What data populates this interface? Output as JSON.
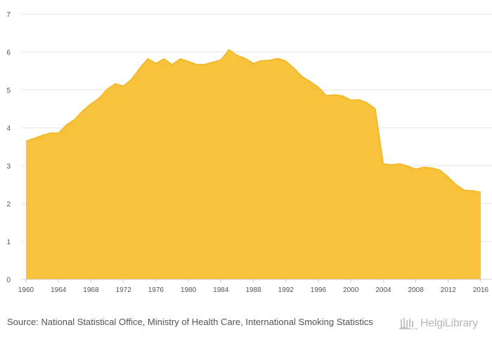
{
  "chart_data": {
    "type": "area",
    "title": "",
    "xlabel": "",
    "ylabel": "",
    "ylim": [
      0,
      7
    ],
    "xlim": [
      1960,
      2016
    ],
    "grid": true,
    "color": "#F8C23C",
    "yticks": [
      0,
      1,
      2,
      3,
      4,
      5,
      6,
      7
    ],
    "xticks": [
      1960,
      1964,
      1968,
      1972,
      1976,
      1980,
      1984,
      1988,
      1992,
      1996,
      2000,
      2004,
      2008,
      2012,
      2016
    ],
    "x": [
      1960,
      1961,
      1962,
      1963,
      1964,
      1965,
      1966,
      1967,
      1968,
      1969,
      1970,
      1971,
      1972,
      1973,
      1974,
      1975,
      1976,
      1977,
      1978,
      1979,
      1980,
      1981,
      1982,
      1983,
      1984,
      1985,
      1986,
      1987,
      1988,
      1989,
      1990,
      1991,
      1992,
      1993,
      1994,
      1995,
      1996,
      1997,
      1998,
      1999,
      2000,
      2001,
      2002,
      2003,
      2004,
      2005,
      2006,
      2007,
      2008,
      2009,
      2010,
      2011,
      2012,
      2013,
      2014,
      2015,
      2016
    ],
    "values": [
      3.65,
      3.72,
      3.8,
      3.86,
      3.86,
      4.08,
      4.22,
      4.45,
      4.63,
      4.78,
      5.02,
      5.16,
      5.1,
      5.28,
      5.57,
      5.82,
      5.7,
      5.82,
      5.67,
      5.82,
      5.75,
      5.67,
      5.67,
      5.73,
      5.79,
      6.06,
      5.91,
      5.83,
      5.7,
      5.77,
      5.78,
      5.83,
      5.76,
      5.57,
      5.35,
      5.22,
      5.07,
      4.85,
      4.87,
      4.84,
      4.73,
      4.74,
      4.66,
      4.5,
      3.05,
      3.02,
      3.05,
      2.99,
      2.91,
      2.96,
      2.94,
      2.88,
      2.7,
      2.49,
      2.35,
      2.34,
      2.3
    ]
  },
  "source": {
    "prefix": "Source:",
    "text": "National Statistical Office, Ministry of Health Care, International Smoking Statistics"
  },
  "logo": {
    "text": "HelgiLibrary",
    "icon": "helgi-library-logo-icon"
  }
}
